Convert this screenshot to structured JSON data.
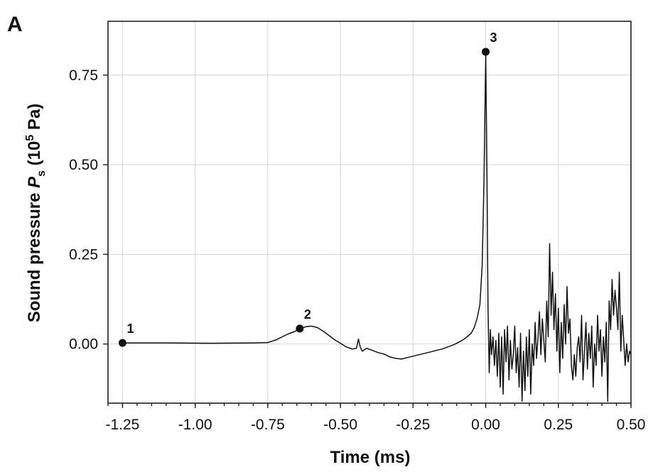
{
  "panel_label": "A",
  "chart_data": {
    "type": "line",
    "title": "",
    "xlabel": "Time (ms)",
    "ylabel": {
      "prefix": "Sound pressure ",
      "symbol": "P",
      "subscript": "s",
      "unit_open": " (10",
      "exponent": "5",
      "unit_close": " Pa)"
    },
    "xlim": [
      -1.3,
      0.5
    ],
    "ylim": [
      -0.165,
      0.9
    ],
    "x_ticks": [
      -1.25,
      -1.0,
      -0.75,
      -0.5,
      -0.25,
      0.0,
      0.25,
      0.5
    ],
    "x_tick_labels": [
      "-1.25",
      "-1.00",
      "-0.75",
      "-0.50",
      "-0.25",
      "0.00",
      "0.25",
      "0.50"
    ],
    "y_ticks": [
      0.0,
      0.25,
      0.5,
      0.75
    ],
    "y_tick_labels": [
      "0.00",
      "0.25",
      "0.50",
      "0.75"
    ],
    "grid": true,
    "legend": "none",
    "series": [
      {
        "x": [
          -1.25,
          -1.1,
          -0.95,
          -0.8,
          -0.75,
          -0.72,
          -0.7,
          -0.68,
          -0.66,
          -0.64,
          -0.62,
          -0.6,
          -0.58,
          -0.56,
          -0.54,
          -0.52,
          -0.5,
          -0.48,
          -0.46,
          -0.445,
          -0.438,
          -0.432,
          -0.425,
          -0.41,
          -0.39,
          -0.37,
          -0.35,
          -0.33,
          -0.31,
          -0.29,
          -0.27,
          -0.25,
          -0.23,
          -0.21,
          -0.19,
          -0.17,
          -0.15,
          -0.13,
          -0.11,
          -0.09,
          -0.07,
          -0.05,
          -0.04,
          -0.03,
          -0.02,
          -0.012,
          -0.006,
          0.0,
          0.004,
          0.008,
          0.012,
          0.016,
          0.02,
          0.025,
          0.03,
          0.035,
          0.04,
          0.045,
          0.05,
          0.055,
          0.06,
          0.065,
          0.07,
          0.075,
          0.08,
          0.085,
          0.09,
          0.095,
          0.1,
          0.105,
          0.11,
          0.115,
          0.12,
          0.125,
          0.13,
          0.135,
          0.14,
          0.145,
          0.15,
          0.155,
          0.16,
          0.165,
          0.17,
          0.175,
          0.18,
          0.185,
          0.19,
          0.195,
          0.2,
          0.205,
          0.21,
          0.215,
          0.22,
          0.225,
          0.23,
          0.235,
          0.24,
          0.245,
          0.25,
          0.255,
          0.26,
          0.265,
          0.27,
          0.275,
          0.28,
          0.285,
          0.29,
          0.295,
          0.3,
          0.305,
          0.31,
          0.315,
          0.32,
          0.325,
          0.33,
          0.335,
          0.34,
          0.345,
          0.35,
          0.355,
          0.36,
          0.365,
          0.37,
          0.375,
          0.38,
          0.385,
          0.39,
          0.395,
          0.4,
          0.405,
          0.41,
          0.415,
          0.42,
          0.425,
          0.43,
          0.435,
          0.44,
          0.445,
          0.45,
          0.455,
          0.46,
          0.465,
          0.47,
          0.475,
          0.48,
          0.485,
          0.49,
          0.495,
          0.5
        ],
        "y": [
          0.003,
          0.003,
          0.002,
          0.003,
          0.004,
          0.012,
          0.02,
          0.028,
          0.034,
          0.042,
          0.048,
          0.05,
          0.046,
          0.036,
          0.024,
          0.012,
          0.002,
          -0.008,
          -0.014,
          -0.012,
          0.014,
          -0.008,
          -0.02,
          -0.012,
          -0.018,
          -0.024,
          -0.028,
          -0.036,
          -0.04,
          -0.042,
          -0.038,
          -0.034,
          -0.03,
          -0.026,
          -0.022,
          -0.018,
          -0.014,
          -0.008,
          -0.002,
          0.006,
          0.016,
          0.03,
          0.045,
          0.07,
          0.11,
          0.22,
          0.45,
          0.81,
          0.5,
          0.1,
          -0.08,
          0.04,
          -0.03,
          0.02,
          -0.06,
          0.01,
          -0.09,
          0.03,
          -0.12,
          0.02,
          -0.14,
          0.04,
          -0.05,
          0.05,
          -0.1,
          0.01,
          -0.07,
          -0.03,
          0.05,
          -0.08,
          -0.01,
          -0.12,
          0.03,
          -0.16,
          -0.02,
          -0.13,
          0.02,
          -0.09,
          0.04,
          -0.14,
          0.0,
          -0.06,
          0.06,
          -0.04,
          0.02,
          0.09,
          -0.03,
          0.07,
          0.01,
          -0.05,
          0.12,
          0.02,
          0.28,
          0.08,
          0.2,
          0.04,
          0.14,
          -0.02,
          0.1,
          -0.08,
          0.06,
          -0.04,
          0.11,
          0.0,
          0.16,
          0.03,
          0.07,
          -0.06,
          -0.1,
          -0.03,
          -0.09,
          -0.01,
          0.02,
          -0.05,
          0.08,
          -0.1,
          -0.02,
          0.06,
          -0.07,
          0.03,
          -0.04,
          0.05,
          -0.12,
          0.0,
          -0.06,
          0.08,
          -0.02,
          0.04,
          -0.09,
          0.02,
          -0.05,
          0.06,
          -0.16,
          0.12,
          0.04,
          0.18,
          0.08,
          0.15,
          0.1,
          0.04,
          0.2,
          -0.02,
          0.08,
          0.01,
          -0.06,
          0.0,
          -0.05,
          -0.02,
          -0.03
        ]
      }
    ],
    "annotations": [
      {
        "label": "1",
        "x": -1.25,
        "y": 0.003
      },
      {
        "label": "2",
        "x": -0.64,
        "y": 0.043
      },
      {
        "label": "3",
        "x": 0.0,
        "y": 0.815
      }
    ]
  }
}
